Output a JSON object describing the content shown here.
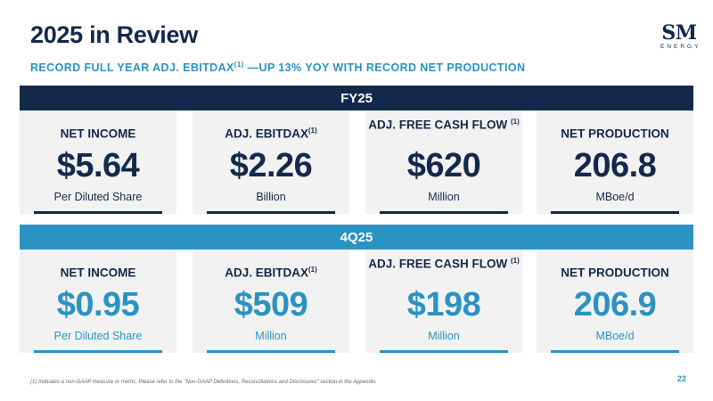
{
  "title": "2025 in Review",
  "subtitle": {
    "before": "RECORD FULL YEAR ADJ. EBITDAX",
    "note": "(1)",
    "after": " —UP 13% YOY WITH RECORD NET PRODUCTION"
  },
  "logo": {
    "main": "SM",
    "sub": "ENERGY"
  },
  "fy": {
    "band_label": "FY25",
    "cards": [
      {
        "label": "NET INCOME",
        "note": "",
        "value": "$5.64",
        "unit": "Per Diluted Share"
      },
      {
        "label": "ADJ. EBITDAX",
        "note": "(1)",
        "value": "$2.26",
        "unit": "Billion"
      },
      {
        "label": "ADJ. FREE CASH FLOW",
        "note": "(1)",
        "value": "$620",
        "unit": "Million"
      },
      {
        "label": "NET PRODUCTION",
        "note": "",
        "value": "206.8",
        "unit": "MBoe/d"
      }
    ]
  },
  "q": {
    "band_label": "4Q25",
    "cards": [
      {
        "label": "NET INCOME",
        "note": "",
        "value": "$0.95",
        "unit": "Per Diluted Share"
      },
      {
        "label": "ADJ. EBITDAX",
        "note": "(1)",
        "value": "$509",
        "unit": "Million"
      },
      {
        "label": "ADJ. FREE CASH FLOW",
        "note": "(1)",
        "value": "$198",
        "unit": "Million"
      },
      {
        "label": "NET PRODUCTION",
        "note": "",
        "value": "206.9",
        "unit": "MBoe/d"
      }
    ]
  },
  "footnote": "(1) Indicates a non-GAAP measure or metric. Please refer to the \"Non-GAAP Definitions, Reconciliations and Disclosures\" section in the Appendix.",
  "page_number": "22"
}
